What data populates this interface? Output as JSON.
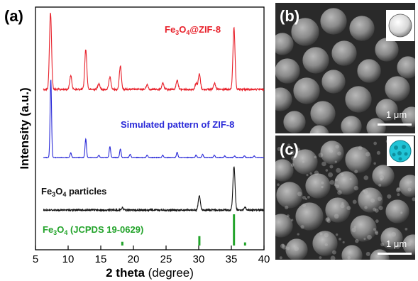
{
  "panel_labels": {
    "a": "(a)",
    "b": "(b)",
    "c": "(c)"
  },
  "chart_data": {
    "type": "line",
    "xlabel_bold": "2 theta",
    "xlabel_rest": " (degree)",
    "ylabel": "Intensity (a.u.)",
    "xlim": [
      5,
      40
    ],
    "xticks": [
      "5",
      "10",
      "15",
      "20",
      "25",
      "30",
      "35",
      "40"
    ],
    "series": [
      {
        "name": "Fe₃O₄@ZIF-8",
        "color": "#e8202a",
        "peaks": [
          [
            7.3,
            100
          ],
          [
            10.4,
            18
          ],
          [
            12.7,
            52
          ],
          [
            14.7,
            8
          ],
          [
            16.4,
            16
          ],
          [
            18.0,
            30
          ],
          [
            22.1,
            6
          ],
          [
            24.5,
            8
          ],
          [
            26.7,
            12
          ],
          [
            29.6,
            8
          ],
          [
            30.1,
            20
          ],
          [
            32.4,
            8
          ],
          [
            35.4,
            80
          ]
        ]
      },
      {
        "name": "Simulated pattern of ZIF-8",
        "color": "#2a2ad8",
        "peaks": [
          [
            7.35,
            100
          ],
          [
            10.4,
            6
          ],
          [
            12.7,
            24
          ],
          [
            14.7,
            3
          ],
          [
            16.4,
            14
          ],
          [
            18.0,
            11
          ],
          [
            19.5,
            4
          ],
          [
            22.1,
            3
          ],
          [
            24.5,
            3
          ],
          [
            26.7,
            7
          ],
          [
            29.6,
            3
          ],
          [
            30.6,
            4
          ],
          [
            32.4,
            3
          ],
          [
            34.0,
            2
          ],
          [
            35.5,
            2
          ],
          [
            37.0,
            2
          ],
          [
            38.5,
            2
          ]
        ]
      },
      {
        "name": "Fe₃O₄ particles",
        "color": "#111111",
        "peaks": [
          [
            18.3,
            5
          ],
          [
            30.1,
            33
          ],
          [
            35.4,
            100
          ],
          [
            37.1,
            6
          ]
        ]
      },
      {
        "name": "Fe₃O₄ (JCPDS 19-0629)",
        "color": "#22a32a",
        "type": "stick",
        "peaks": [
          [
            18.3,
            12
          ],
          [
            30.1,
            30
          ],
          [
            35.4,
            100
          ],
          [
            37.1,
            10
          ]
        ]
      }
    ]
  },
  "labels": {
    "fe_zif": {
      "main": "Fe",
      "sub1": "3",
      "mid": "O",
      "sub2": "4",
      "tail": "@ZIF-8"
    },
    "simulated": "Simulated pattern of ZIF-8",
    "fe_particles": {
      "main": "Fe",
      "sub1": "3",
      "mid": "O",
      "sub2": "4",
      "tail": " particles"
    },
    "jcpds": {
      "main": "Fe",
      "sub1": "3",
      "mid": "O",
      "sub2": "4",
      "tail": " (JCPDS 19-0629)"
    }
  },
  "scale_bars": {
    "b": "1 μm",
    "c": "1 μm"
  },
  "colors": {
    "red": "#e8202a",
    "blue": "#2a2ad8",
    "black": "#111111",
    "green": "#22a32a",
    "inset_cyan": "#20c4d6"
  }
}
